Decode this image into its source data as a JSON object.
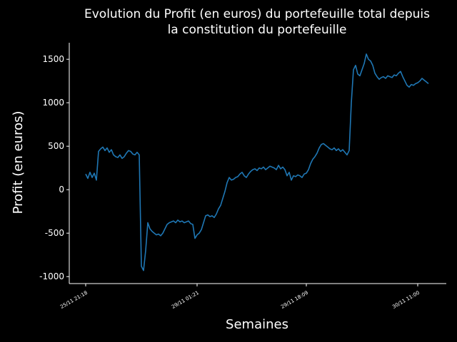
{
  "chart_data": {
    "type": "line",
    "title": [
      "Evolution du Profit (en euros) du portefeuille total depuis",
      "la constitution du portefeuille"
    ],
    "x_label": "Semaines",
    "y_label": "Profit (en euros)",
    "categories": [
      "25/11 21:18",
      null,
      null,
      null,
      null,
      null,
      null,
      null,
      null,
      null,
      null,
      null,
      null,
      null,
      null,
      null,
      null,
      null,
      null,
      null,
      null,
      null,
      null,
      null,
      null,
      null,
      null,
      null,
      null,
      null,
      null,
      null,
      null,
      null,
      null,
      null,
      null,
      null,
      null,
      null,
      null,
      null,
      null,
      null,
      null,
      null,
      null,
      null,
      null,
      null,
      null,
      null,
      "29/11 01:21",
      null,
      null,
      null,
      null,
      null,
      null,
      null,
      null,
      null,
      null,
      null,
      null,
      null,
      null,
      null,
      null,
      null,
      null,
      null,
      null,
      null,
      null,
      null,
      null,
      null,
      null,
      null,
      null,
      null,
      null,
      null,
      null,
      null,
      null,
      null,
      null,
      null,
      null,
      null,
      null,
      null,
      null,
      null,
      null,
      null,
      null,
      null,
      null,
      null,
      null,
      "29/11 18:09",
      null,
      null,
      null,
      null,
      null,
      null,
      null,
      null,
      null,
      null,
      null,
      null,
      null,
      null,
      null,
      null,
      null,
      null,
      null,
      null,
      null,
      null,
      null,
      null,
      null,
      null,
      null,
      null,
      null,
      null,
      null,
      null,
      null,
      null,
      null,
      null,
      null,
      null,
      null,
      null,
      null,
      null,
      null,
      null,
      null,
      null,
      null,
      null,
      null,
      null,
      null,
      "30/11 11:00",
      null,
      null,
      null,
      null,
      null
    ],
    "series": [
      {
        "name": "Profit",
        "color": "#1f77b4",
        "values": [
          180,
          130,
          200,
          140,
          190,
          110,
          440,
          470,
          490,
          450,
          480,
          430,
          460,
          400,
          380,
          370,
          400,
          360,
          380,
          420,
          450,
          440,
          410,
          400,
          430,
          400,
          -880,
          -930,
          -700,
          -380,
          -450,
          -480,
          -500,
          -520,
          -510,
          -530,
          -500,
          -450,
          -400,
          -380,
          -370,
          -360,
          -380,
          -350,
          -370,
          -360,
          -380,
          -370,
          -360,
          -390,
          -400,
          -560,
          -520,
          -500,
          -460,
          -380,
          -300,
          -290,
          -310,
          -300,
          -320,
          -280,
          -220,
          -180,
          -100,
          -20,
          80,
          140,
          110,
          120,
          140,
          150,
          180,
          200,
          160,
          140,
          180,
          210,
          230,
          240,
          220,
          250,
          240,
          260,
          230,
          250,
          270,
          260,
          250,
          230,
          280,
          240,
          260,
          230,
          160,
          200,
          110,
          160,
          150,
          170,
          160,
          140,
          180,
          190,
          230,
          300,
          350,
          380,
          420,
          480,
          520,
          530,
          510,
          490,
          470,
          460,
          480,
          450,
          470,
          440,
          460,
          430,
          400,
          450,
          1000,
          1380,
          1430,
          1330,
          1310,
          1380,
          1450,
          1560,
          1500,
          1480,
          1430,
          1340,
          1300,
          1270,
          1290,
          1300,
          1280,
          1310,
          1300,
          1290,
          1320,
          1310,
          1340,
          1360,
          1300,
          1250,
          1200,
          1180,
          1210,
          1200,
          1220,
          1230,
          1250,
          1280,
          1260,
          1240,
          1220
        ]
      }
    ],
    "ylim": [
      -1080,
      1690
    ],
    "yticks": [
      -1000,
      -500,
      0,
      500,
      1000,
      1500
    ]
  }
}
